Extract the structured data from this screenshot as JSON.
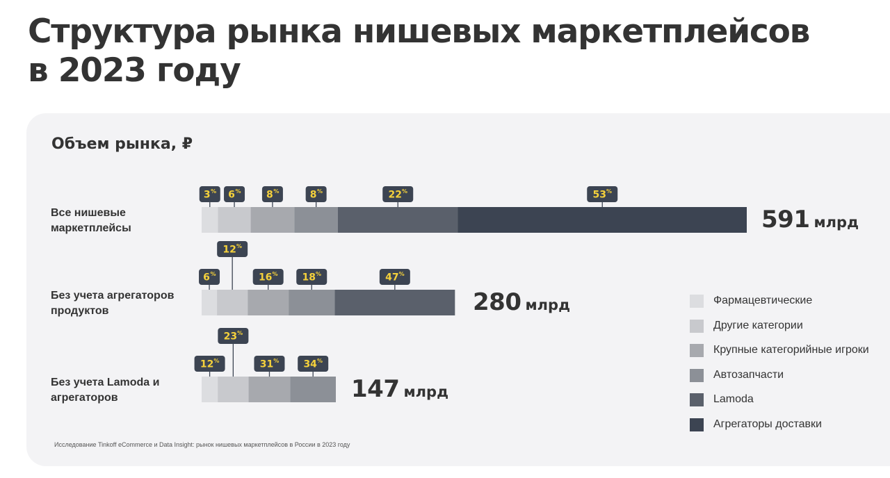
{
  "title": "Структура рынка нишевых маркетплейсов\nв 2023 году",
  "subtitle": "Объем рынка, ₽",
  "source": "Исследование Tinkoff eCommerce и Data Insight: рынок нишевых маркетплейсов в России в 2023 году",
  "colors": {
    "background": "#ffffff",
    "panel": "#f3f3f5",
    "label_badge": "#3c4452",
    "label_text": "#f5d13b"
  },
  "chart_data": {
    "type": "bar",
    "orientation": "horizontal",
    "stacked": true,
    "unit": "%",
    "categories": [
      "Все нишевые маркетплейсы",
      "Без учета агрегаторов продуктов",
      "Без учета Lamoda и агрегаторов"
    ],
    "totals": [
      {
        "value": "591",
        "unit": "млрд"
      },
      {
        "value": "280",
        "unit": "млрд"
      },
      {
        "value": "147",
        "unit": "млрд"
      }
    ],
    "series": [
      {
        "name": "Фармацевтические",
        "color": "#dcdde0",
        "values": [
          3,
          6,
          12
        ]
      },
      {
        "name": "Другие категории",
        "color": "#c8c9cd",
        "values": [
          6,
          12,
          23
        ]
      },
      {
        "name": "Крупные категорийные игроки",
        "color": "#a7a9ae",
        "values": [
          8,
          16,
          31
        ]
      },
      {
        "name": "Автозапчасти",
        "color": "#8c9097",
        "values": [
          8,
          18,
          34
        ]
      },
      {
        "name": "Lamoda",
        "color": "#5a606b",
        "values": [
          22,
          47,
          null
        ]
      },
      {
        "name": "Агрегаторы доставки",
        "color": "#3c4452",
        "values": [
          53,
          null,
          null
        ]
      }
    ],
    "data_labels": [
      [
        "3",
        "6",
        "8",
        "8",
        "22",
        "53"
      ],
      [
        "6",
        "12",
        "16",
        "18",
        "47"
      ],
      [
        "12",
        "23",
        "31",
        "34"
      ]
    ],
    "legend": "right",
    "grid": false
  }
}
